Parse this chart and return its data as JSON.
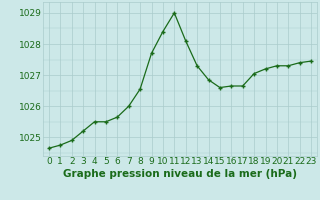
{
  "x": [
    0,
    1,
    2,
    3,
    4,
    5,
    6,
    7,
    8,
    9,
    10,
    11,
    12,
    13,
    14,
    15,
    16,
    17,
    18,
    19,
    20,
    21,
    22,
    23
  ],
  "y": [
    1024.65,
    1024.75,
    1024.9,
    1025.2,
    1025.5,
    1025.5,
    1025.65,
    1026.0,
    1026.55,
    1027.7,
    1028.4,
    1029.0,
    1028.1,
    1027.3,
    1026.85,
    1026.6,
    1026.65,
    1026.65,
    1027.05,
    1027.2,
    1027.3,
    1027.3,
    1027.4,
    1027.45
  ],
  "line_color": "#1a6b1a",
  "marker_color": "#1a6b1a",
  "bg_color": "#cce8e8",
  "grid_color": "#aacccc",
  "xlabel": "Graphe pression niveau de la mer (hPa)",
  "xlabel_color": "#1a6b1a",
  "xlabel_fontsize": 7.5,
  "tick_color": "#1a6b1a",
  "tick_fontsize": 6.5,
  "ylim": [
    1024.4,
    1029.35
  ],
  "yticks": [
    1025,
    1026,
    1027,
    1028,
    1029
  ],
  "xticks": [
    0,
    1,
    2,
    3,
    4,
    5,
    6,
    7,
    8,
    9,
    10,
    11,
    12,
    13,
    14,
    15,
    16,
    17,
    18,
    19,
    20,
    21,
    22,
    23
  ]
}
